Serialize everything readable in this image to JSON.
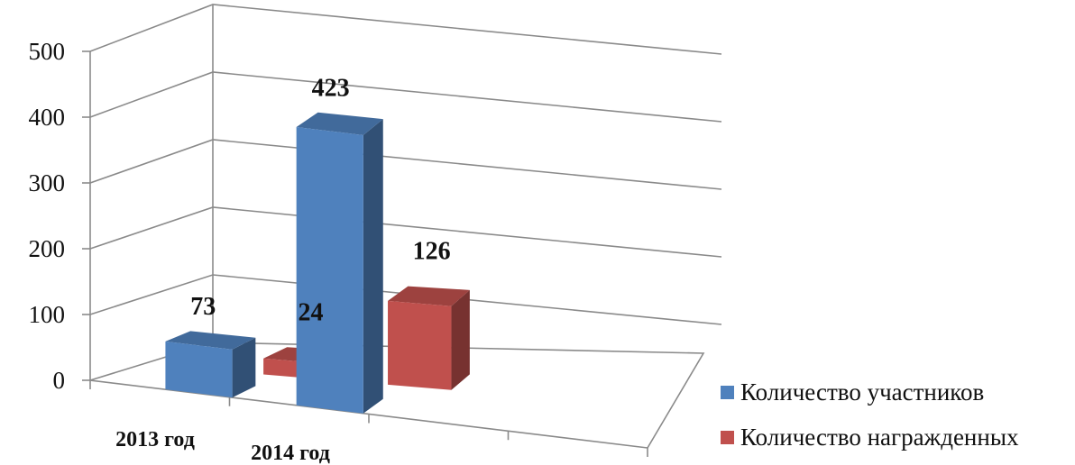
{
  "chart_data": {
    "type": "bar",
    "style": "3d-clustered-column",
    "categories": [
      "2013 год",
      "2014 год"
    ],
    "series": [
      {
        "name": "Количество участников",
        "color": "#4F81BD",
        "values": [
          73,
          423
        ]
      },
      {
        "name": "Количество награжденных",
        "color": "#C0504D",
        "values": [
          24,
          126
        ]
      }
    ],
    "y_ticks": [
      "0",
      "100",
      "200",
      "300",
      "400",
      "500"
    ],
    "ylim": [
      0,
      500
    ],
    "grid": true,
    "legend_position": "right",
    "data_labels": true
  }
}
